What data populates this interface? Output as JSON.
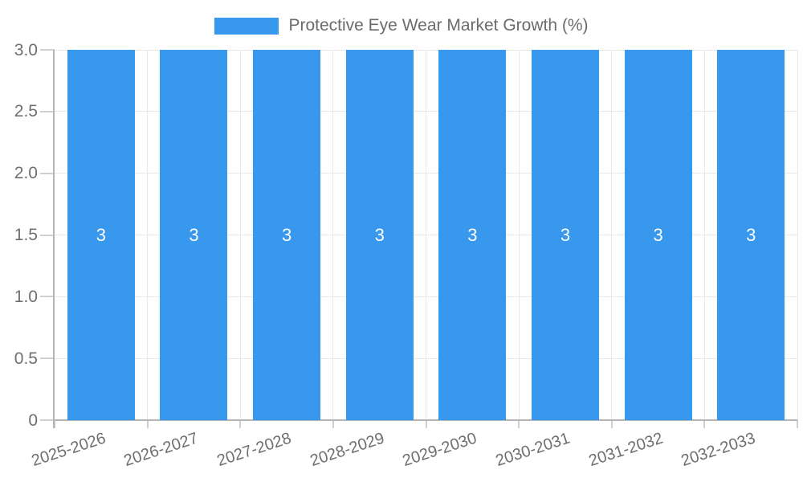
{
  "legend": {
    "label": "Protective Eye Wear Market Growth (%)"
  },
  "chart_data": {
    "type": "bar",
    "title": "Protective Eye Wear Market Growth (%)",
    "categories": [
      "2025-2026",
      "2026-2027",
      "2027-2028",
      "2028-2029",
      "2029-2030",
      "2030-2031",
      "2031-2032",
      "2032-2033"
    ],
    "values": [
      3,
      3,
      3,
      3,
      3,
      3,
      3,
      3
    ],
    "bar_labels": [
      "3",
      "3",
      "3",
      "3",
      "3",
      "3",
      "3",
      "3"
    ],
    "xlabel": "",
    "ylabel": "",
    "ylim": [
      0,
      3
    ],
    "ytick_values": [
      3.0,
      2.5,
      2.0,
      1.5,
      1.0,
      0.5,
      0
    ],
    "ytick_labels": [
      "3.0",
      "2.5",
      "2.0",
      "1.5",
      "1.0",
      "0.5",
      "0"
    ],
    "grid": true,
    "legend_position": "top",
    "x_label_rotation_deg": -18,
    "colors": {
      "bar": "#3798ee",
      "grid": "#e8e8e8",
      "axis": "#b4b4b4",
      "tick": "#cfcfcf",
      "text": "#6f6f6f",
      "bar_label": "#ffffff",
      "background": "#ffffff"
    }
  }
}
